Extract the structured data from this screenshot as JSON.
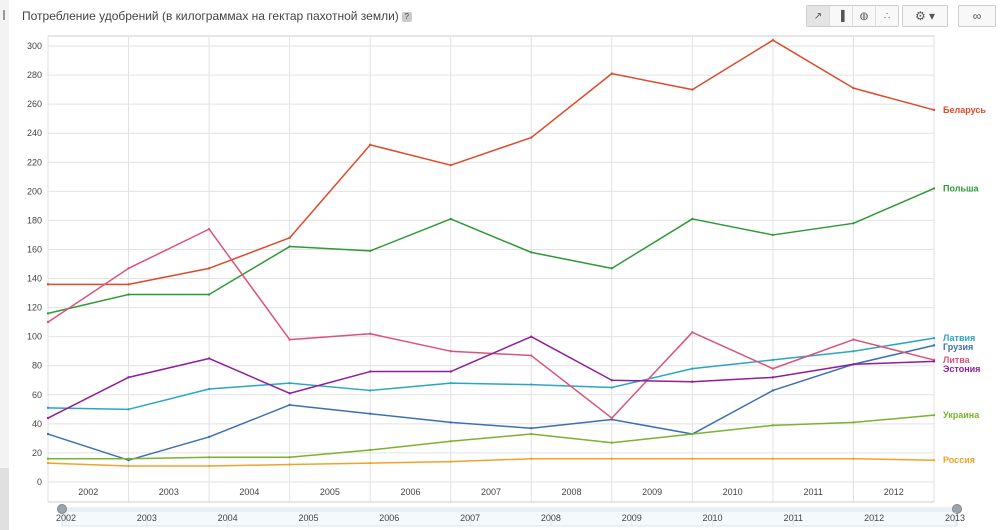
{
  "title": "Потребление удобрений (в килограммах на гектар пахотной земли)",
  "help_icon": "?",
  "toolbar": {
    "chart_types": [
      {
        "name": "line-chart-button",
        "icon": "line-chart-icon",
        "glyph": "↗",
        "active": true
      },
      {
        "name": "bar-chart-button",
        "icon": "bar-chart-icon",
        "glyph": "▐",
        "active": false
      },
      {
        "name": "map-button",
        "icon": "globe-icon",
        "glyph": "◍",
        "active": false
      },
      {
        "name": "scatter-button",
        "icon": "scatter-icon",
        "glyph": "∴",
        "active": false
      }
    ],
    "settings_glyph": "⚙ ▾",
    "link_glyph": "∞"
  },
  "chart_data": {
    "type": "line",
    "title": "Потребление удобрений (в килограммах на гектар пахотной земли)",
    "x": [
      2002,
      2003,
      2004,
      2005,
      2006,
      2007,
      2008,
      2009,
      2010,
      2011,
      2012,
      2013
    ],
    "x_ticks": [
      "2002",
      "2003",
      "2004",
      "2005",
      "2006",
      "2007",
      "2008",
      "2009",
      "2010",
      "2011",
      "2012"
    ],
    "range_labels": [
      "2002",
      "2003",
      "2004",
      "2005",
      "2006",
      "2007",
      "2008",
      "2009",
      "2010",
      "2011",
      "2012",
      "2013"
    ],
    "ylim": [
      0,
      300
    ],
    "y_ticks": [
      0,
      20,
      40,
      60,
      80,
      100,
      120,
      140,
      160,
      180,
      200,
      220,
      240,
      260,
      280,
      300
    ],
    "grid": true,
    "legend": "right end labels",
    "series": [
      {
        "name": "Беларусь",
        "color": "#dd4b2b",
        "values": [
          136,
          136,
          147,
          168,
          232,
          218,
          237,
          281,
          270,
          304,
          271,
          256
        ]
      },
      {
        "name": "Польша",
        "color": "#2e9a36",
        "values": [
          116,
          129,
          129,
          162,
          159,
          181,
          158,
          147,
          181,
          170,
          178,
          202
        ]
      },
      {
        "name": "Латвия",
        "color": "#2aa6c0",
        "values": [
          51,
          50,
          64,
          68,
          63,
          68,
          67,
          65,
          78,
          84,
          90,
          99
        ]
      },
      {
        "name": "Грузия",
        "color": "#3e6fb3",
        "values": [
          33,
          15,
          31,
          53,
          47,
          41,
          37,
          43,
          33,
          63,
          81,
          94
        ]
      },
      {
        "name": "Литва",
        "color": "#d9547a",
        "values": [
          110,
          147,
          174,
          98,
          102,
          90,
          87,
          44,
          103,
          78,
          98,
          84
        ]
      },
      {
        "name": "Эстония",
        "color": "#8e1e9a",
        "values": [
          44,
          72,
          85,
          61,
          76,
          76,
          100,
          70,
          69,
          72,
          81,
          83
        ]
      },
      {
        "name": "Украина",
        "color": "#7ab32e",
        "values": [
          16,
          16,
          17,
          17,
          22,
          28,
          33,
          27,
          33,
          39,
          41,
          46
        ]
      },
      {
        "name": "Россия",
        "color": "#f0a22a",
        "values": [
          13,
          11,
          11,
          12,
          13,
          14,
          16,
          16,
          16,
          16,
          16,
          15
        ]
      }
    ]
  }
}
